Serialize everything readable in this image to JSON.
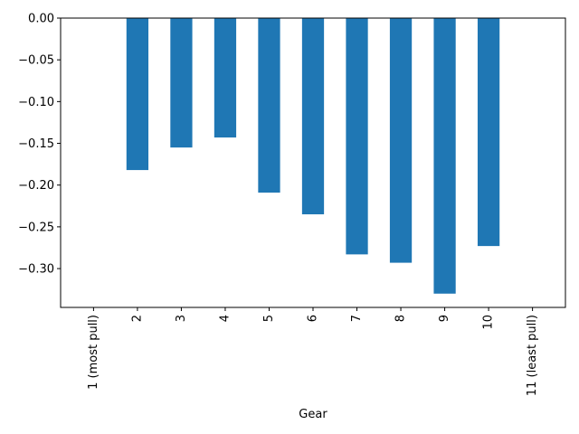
{
  "chart_data": {
    "type": "bar",
    "title": "",
    "xlabel": "Gear",
    "ylabel": "",
    "categories": [
      "1 (most pull)",
      "2",
      "3",
      "4",
      "5",
      "6",
      "7",
      "8",
      "9",
      "10",
      "11 (least pull)"
    ],
    "values": [
      0.0,
      -0.182,
      -0.155,
      -0.143,
      -0.209,
      -0.235,
      -0.283,
      -0.293,
      -0.33,
      -0.273,
      0.0
    ],
    "yticks": [
      0.0,
      -0.05,
      -0.1,
      -0.15,
      -0.2,
      -0.25,
      -0.3
    ],
    "ytick_labels": [
      "0.00",
      "−0.05",
      "−0.10",
      "−0.15",
      "−0.20",
      "−0.25",
      "−0.30"
    ],
    "ylim": [
      -0.3465,
      0.0
    ],
    "grid": false,
    "bar_color": "#1f77b4"
  }
}
